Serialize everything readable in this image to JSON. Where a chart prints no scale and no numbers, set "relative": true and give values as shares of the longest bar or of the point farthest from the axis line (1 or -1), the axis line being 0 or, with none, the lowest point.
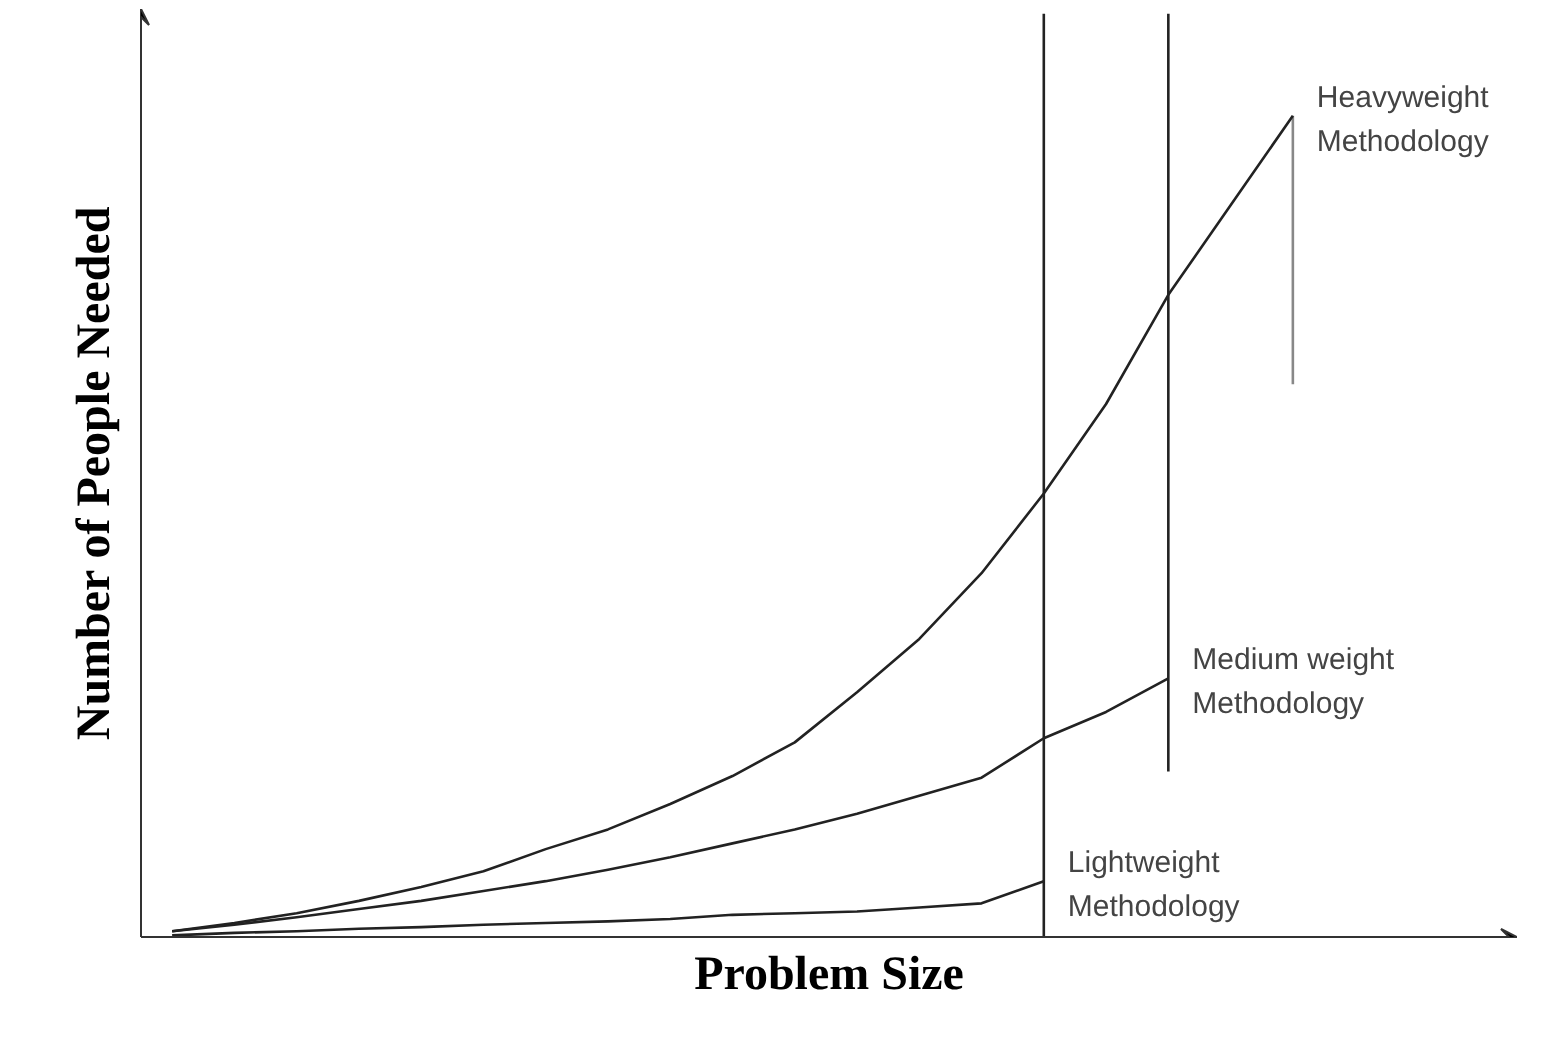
{
  "chart_data": {
    "type": "line",
    "relative": true,
    "xlabel": "Problem Size",
    "ylabel": "Number of People Needed",
    "tick_labels": false,
    "marker": "none",
    "line_style": "solid",
    "categories": [
      null,
      null,
      null,
      null,
      null,
      null,
      null,
      null,
      null,
      null,
      null,
      null,
      null,
      null,
      null,
      null,
      null,
      null,
      null
    ],
    "series": [
      {
        "name": "Heavyweight\nMethodology",
        "color": "#222222",
        "values": [
          0.007,
          0.017,
          0.029,
          0.044,
          0.061,
          0.08,
          0.107,
          0.131,
          0.162,
          0.196,
          0.237,
          0.298,
          0.363,
          0.443,
          0.54,
          0.649,
          0.782,
          0.891,
          1.0
        ]
      },
      {
        "name": "Medium weight\nMethodology",
        "color": "#222222",
        "values": [
          0.007,
          0.015,
          0.024,
          0.034,
          0.044,
          0.056,
          0.068,
          0.082,
          0.097,
          0.114,
          0.131,
          0.15,
          0.172,
          0.194,
          0.242,
          0.274,
          0.315,
          null,
          null
        ]
      },
      {
        "name": "Lightweight\nMethodology",
        "color": "#222222",
        "values": [
          0.002,
          0.005,
          0.007,
          0.01,
          0.012,
          0.015,
          0.017,
          0.019,
          0.022,
          0.027,
          0.029,
          0.031,
          0.036,
          0.041,
          0.068,
          null,
          null,
          null,
          null
        ]
      }
    ]
  }
}
